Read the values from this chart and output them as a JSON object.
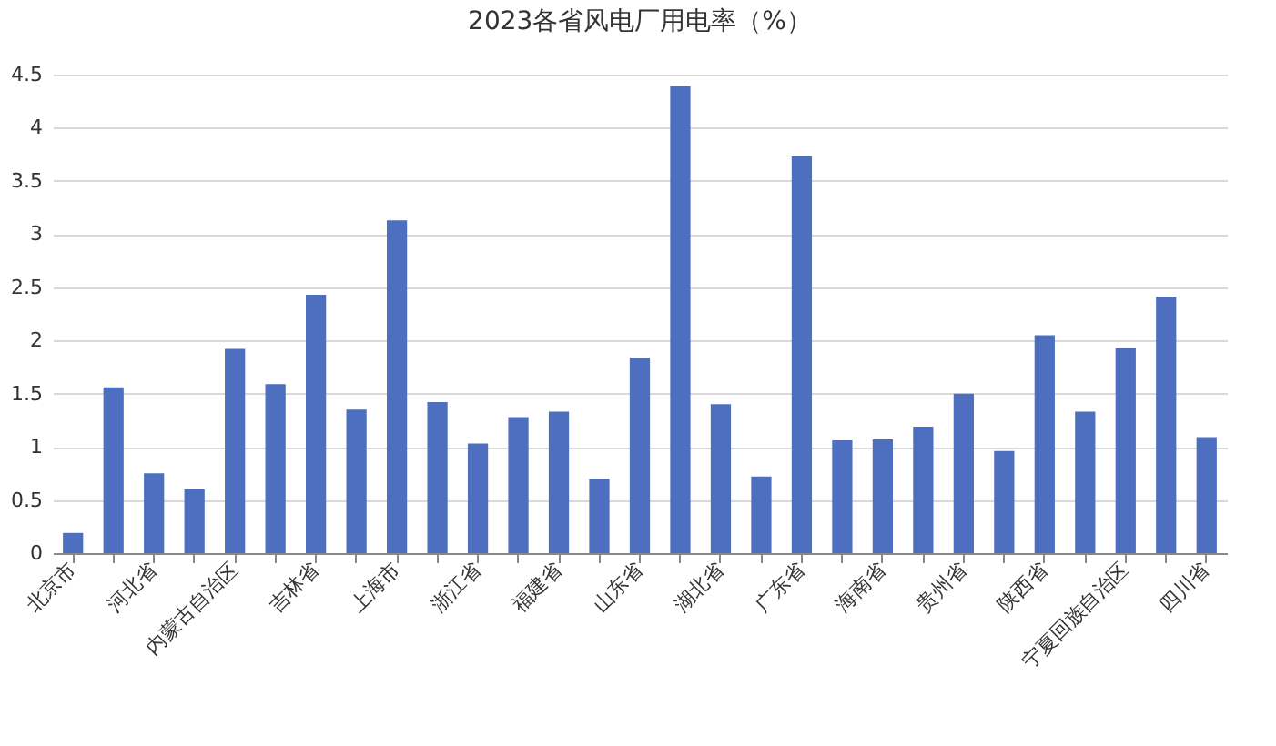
{
  "chart_data": {
    "type": "bar",
    "title": "2023各省风电厂用电率（%）",
    "categories": [
      "北京市",
      null,
      "河北省",
      null,
      "内蒙古自治区",
      null,
      "吉林省",
      null,
      "上海市",
      null,
      "浙江省",
      null,
      "福建省",
      null,
      "山东省",
      null,
      "湖北省",
      null,
      "广东省",
      null,
      "海南省",
      null,
      "贵州省",
      null,
      "陕西省",
      null,
      "宁夏回族自治区",
      null,
      "四川省"
    ],
    "series": [
      {
        "color": "#4e6fbf",
        "values": [
          0.19,
          1.56,
          0.75,
          0.6,
          1.92,
          1.59,
          2.43,
          1.35,
          3.13,
          1.42,
          1.03,
          1.28,
          1.33,
          0.7,
          1.84,
          4.39,
          1.4,
          0.72,
          3.73,
          1.06,
          1.07,
          1.19,
          1.5,
          0.96,
          2.05,
          1.33,
          1.93,
          2.41,
          1.09
        ]
      }
    ],
    "ylim": [
      0,
      4.5
    ],
    "yticks": [
      0,
      0.5,
      1,
      1.5,
      2,
      2.5,
      3,
      3.5,
      4,
      4.5
    ],
    "grid": "y"
  }
}
